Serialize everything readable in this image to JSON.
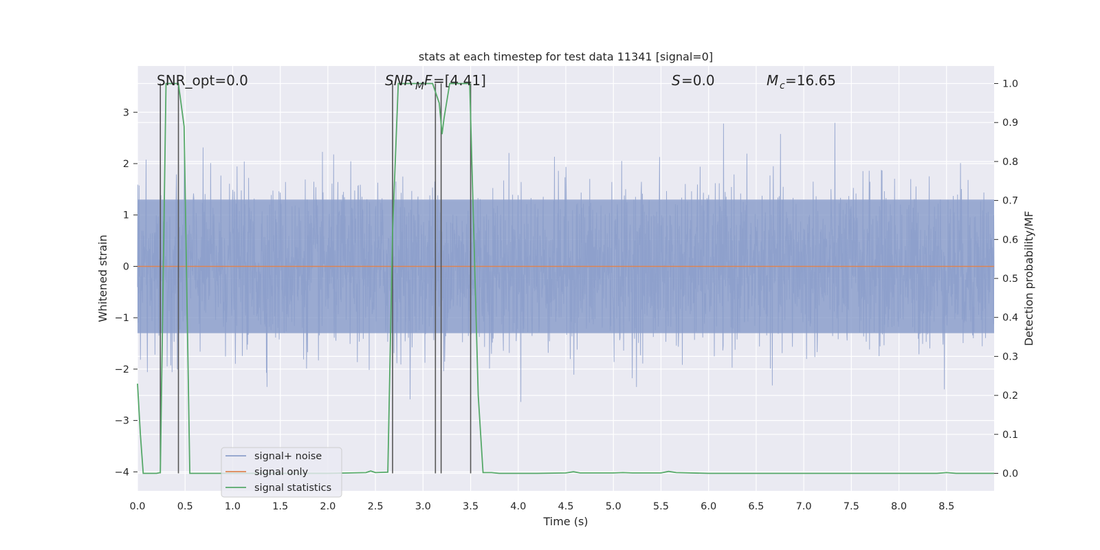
{
  "chart_data": {
    "type": "line",
    "title": "stats at each timestep for test data 11341 [signal=0]",
    "xlabel": "Time (s)",
    "ylabel": "Whitened strain",
    "ylabel_right": "Detection probability/MF",
    "xlim": [
      0,
      9.0
    ],
    "ylim_left": [
      -4.37,
      3.9
    ],
    "ylim_right": [
      -0.045,
      1.045
    ],
    "x_ticks": [
      "0.0",
      "0.5",
      "1.0",
      "1.5",
      "2.0",
      "2.5",
      "3.0",
      "3.5",
      "4.0",
      "4.5",
      "5.0",
      "5.5",
      "6.0",
      "6.5",
      "7.0",
      "7.5",
      "8.0",
      "8.5"
    ],
    "y_ticks_left": [
      "3",
      "2",
      "1",
      "0",
      "−1",
      "−2",
      "−3",
      "−4"
    ],
    "y_ticks_right": [
      "1.0",
      "0.9",
      "0.8",
      "0.7",
      "0.6",
      "0.5",
      "0.4",
      "0.3",
      "0.2",
      "0.1",
      "0.0"
    ],
    "grid": true,
    "legend_placement": "lower-left",
    "annotations": {
      "snr_opt": "SNR_opt=0.0",
      "snr_mf": "=[4.41]",
      "s": "=0.0",
      "mc": "=16.65"
    },
    "series": [
      {
        "name": "signal+ noise",
        "color": "#8c9fcb",
        "note_shape": "noise band, roughly symmetric about 0",
        "envelope_hi": 1.3,
        "envelope_lo": -1.3,
        "typical_peak_hi": 2.1,
        "typical_peak_lo": -2.2,
        "max_peak_hi": 3.55,
        "min_peak_lo": -3.85
      },
      {
        "name": "signal only",
        "color": "#dd8452",
        "x": [
          0,
          9.0
        ],
        "y": [
          0,
          0
        ]
      },
      {
        "name": "signal statistics",
        "color": "#55a868",
        "axis": "right",
        "x": [
          0.0,
          0.03,
          0.06,
          0.12,
          0.2,
          0.24,
          0.3,
          0.43,
          0.49,
          0.55,
          0.6,
          1.0,
          2.0,
          2.4,
          2.45,
          2.5,
          2.63,
          2.68,
          2.74,
          3.0,
          3.1,
          3.17,
          3.2,
          3.22,
          3.28,
          3.49,
          3.58,
          3.63,
          3.72,
          3.8,
          4.2,
          4.5,
          4.58,
          4.65,
          5.0,
          5.1,
          5.2,
          5.5,
          5.58,
          5.66,
          6.0,
          7.0,
          8.0,
          8.4,
          8.5,
          8.6,
          9.0
        ],
        "y": [
          0.23,
          0.1,
          0.0,
          0.0,
          0.0,
          0.002,
          1.0,
          1.0,
          0.89,
          0.0,
          0.0,
          0.0,
          0.0,
          0.002,
          0.006,
          0.002,
          0.003,
          0.62,
          1.0,
          1.0,
          1.0,
          0.95,
          0.87,
          0.91,
          1.0,
          1.0,
          0.2,
          0.002,
          0.002,
          0.0,
          0.0,
          0.001,
          0.004,
          0.001,
          0.001,
          0.002,
          0.001,
          0.001,
          0.005,
          0.002,
          0.0,
          0.0,
          0.0,
          0.0,
          0.002,
          0.0,
          0.0
        ]
      }
    ],
    "vlines_x": [
      0.24,
      0.43,
      2.68,
      3.13,
      3.19,
      3.5
    ]
  }
}
